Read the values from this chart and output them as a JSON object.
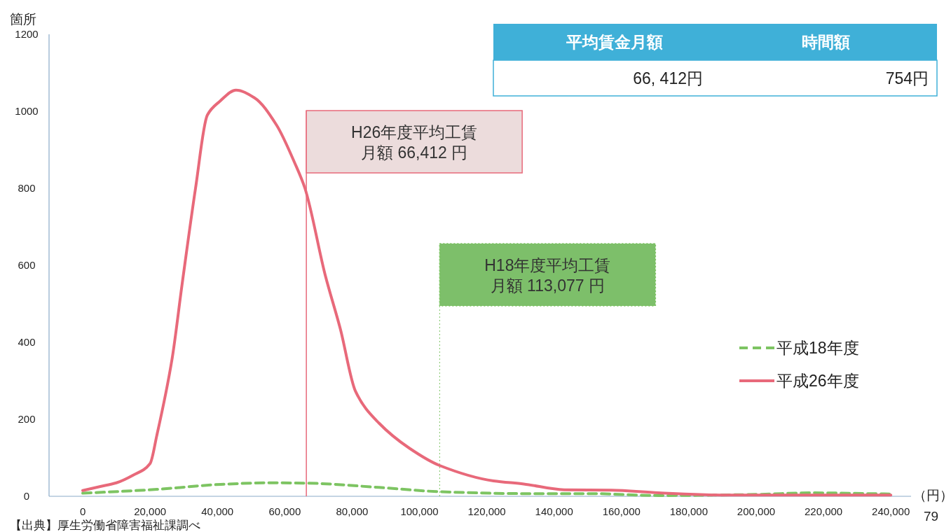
{
  "chart_data": {
    "type": "line",
    "ylabel": "箇所",
    "xlabel": "（円）",
    "xlim": [
      -10000,
      246000
    ],
    "xticks": [
      {
        "value": 0,
        "label": "0"
      },
      {
        "value": 20000,
        "label": "20,000"
      },
      {
        "value": 40000,
        "label": "40,000"
      },
      {
        "value": 60000,
        "label": "60,000"
      },
      {
        "value": 80000,
        "label": "80,000"
      },
      {
        "value": 100000,
        "label": "100,000"
      },
      {
        "value": 120000,
        "label": "120,000"
      },
      {
        "value": 140000,
        "label": "140,000"
      },
      {
        "value": 160000,
        "label": "160,000"
      },
      {
        "value": 180000,
        "label": "180,000"
      },
      {
        "value": 200000,
        "label": "200,000"
      },
      {
        "value": 220000,
        "label": "220,000"
      },
      {
        "value": 240000,
        "label": "240,000"
      }
    ],
    "ylim": [
      0,
      1200
    ],
    "yticks": [
      0,
      200,
      400,
      600,
      800,
      1000,
      1200
    ],
    "grid": false,
    "legend": "right",
    "series": [
      {
        "name": "平成18年度",
        "color": "#7dc462",
        "line_style": "dashed",
        "x": [
          0,
          22000,
          41000,
          55000,
          67000,
          88000,
          106000,
          131000,
          151000,
          171000,
          201000,
          216000,
          240000
        ],
        "values": [
          8,
          18,
          31,
          35,
          34,
          23,
          12,
          7,
          7,
          2,
          5,
          9,
          6
        ]
      },
      {
        "name": "平成26年度",
        "color": "#e8697a",
        "line_style": "solid",
        "x": [
          0,
          5000,
          10000,
          15000,
          20000,
          22000,
          26500,
          29500,
          33500,
          37000,
          40600,
          45500,
          51000,
          57500,
          63000,
          66000,
          72000,
          76500,
          81000,
          88000,
          97000,
          106000,
          122000,
          131000,
          143000,
          157000,
          171000,
          191000,
          240000
        ],
        "values": [
          15,
          25,
          35,
          55,
          85,
          158,
          355,
          550,
          800,
          990,
          1025,
          1055,
          1035,
          965,
          865,
          800,
          575,
          435,
          273,
          190,
          125,
          80,
          40,
          32,
          17,
          16,
          9,
          3,
          3
        ]
      }
    ],
    "ref_lines": [
      {
        "axis": "x",
        "value": 66412,
        "color": "#e8697a",
        "line_style": "solid"
      },
      {
        "axis": "x",
        "value": 106000,
        "color": "#7dc462",
        "line_style": "dotted"
      }
    ],
    "annotations": [
      "平均賃金月額",
      "時間額",
      "66, 412円",
      "754円",
      "【出典】厚生労働省障害福祉課調べ",
      "79",
      "H26年度平均工賃",
      "月額 66,412 円",
      "H18年度平均工賃",
      "月額 113,077 円"
    ]
  }
}
